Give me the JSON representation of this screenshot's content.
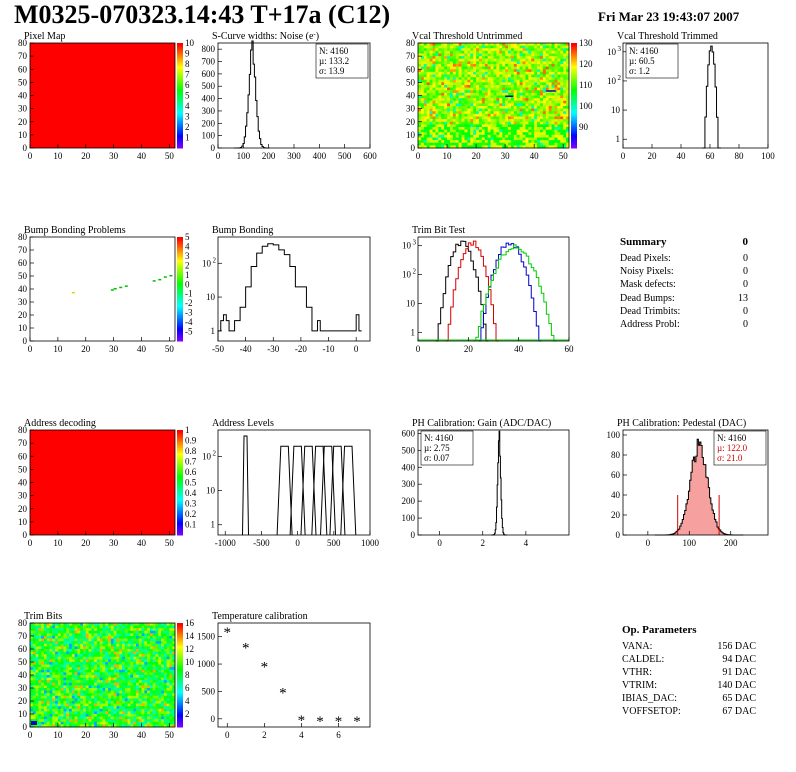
{
  "header": {
    "title": "M0325-070323.14:43 T+17a (C12)",
    "date": "Fri Mar 23 19:43:07 2007"
  },
  "colors": {
    "red_fill": "#ff0000",
    "hist_line": "#000000",
    "trim_red": "#d40000",
    "trim_blue": "#0000cc",
    "trim_green": "#00cc00",
    "gauss_fit": "#d40000",
    "bump_green": "#00cc00"
  },
  "summary": {
    "title": "Summary",
    "total": "0",
    "rows": [
      {
        "label": "Dead Pixels:",
        "value": "0"
      },
      {
        "label": "Noisy Pixels:",
        "value": "0"
      },
      {
        "label": "Mask defects:",
        "value": "0"
      },
      {
        "label": "Dead Bumps:",
        "value": "13"
      },
      {
        "label": "Dead Trimbits:",
        "value": "0"
      },
      {
        "label": "Address Probl:",
        "value": "0"
      }
    ]
  },
  "op_parameters": {
    "title": "Op. Parameters",
    "rows": [
      {
        "label": "VANA:",
        "value": "156 DAC"
      },
      {
        "label": "CALDEL:",
        "value": "94 DAC"
      },
      {
        "label": "VTHR:",
        "value": "91 DAC"
      },
      {
        "label": "VTRIM:",
        "value": "140 DAC"
      },
      {
        "label": "IBIAS_DAC:",
        "value": "65 DAC"
      },
      {
        "label": "VOFFSETOP:",
        "value": "67 DAC"
      }
    ]
  },
  "chart_data": [
    {
      "id": "pixel_map",
      "type": "heatmap",
      "title": "Pixel Map",
      "xlim": [
        0,
        52
      ],
      "ylim": [
        0,
        80
      ],
      "xticks": [
        "0",
        "10",
        "20",
        "30",
        "40",
        "50"
      ],
      "yticks": [
        "0",
        "10",
        "20",
        "30",
        "40",
        "50",
        "60",
        "70",
        "80"
      ],
      "fill": "uniform-red",
      "zscale": [
        0,
        10
      ],
      "zticks": [
        "1",
        "2",
        "3",
        "4",
        "5",
        "6",
        "7",
        "8",
        "9",
        "10"
      ]
    },
    {
      "id": "scurve_noise",
      "type": "bar",
      "title": "S-Curve widths: Noise (e",
      "title_superscript": "-",
      "xlim": [
        0,
        600
      ],
      "ylim": [
        0,
        850
      ],
      "xticks": [
        "0",
        "100",
        "200",
        "300",
        "400",
        "500",
        "600"
      ],
      "yticks": [
        "0",
        "100",
        "200",
        "300",
        "400",
        "500",
        "600",
        "700",
        "800"
      ],
      "stats": [
        {
          "label": "N:",
          "value": "4160"
        },
        {
          "label": "µ:",
          "value": "133.2"
        },
        {
          "label": "σ:",
          "value": "13.9"
        }
      ],
      "gauss": {
        "mean": 133.2,
        "sigma": 13.9,
        "peak": 790,
        "bin": 5
      }
    },
    {
      "id": "vcal_untrimmed",
      "type": "heatmap",
      "title": "Vcal Threshold Untrimmed",
      "xlim": [
        0,
        52
      ],
      "ylim": [
        0,
        80
      ],
      "xticks": [
        "0",
        "10",
        "20",
        "30",
        "40",
        "50"
      ],
      "yticks": [
        "0",
        "10",
        "20",
        "30",
        "40",
        "50",
        "60",
        "70",
        "80"
      ],
      "fill": "noisy-yellow-green",
      "zscale": [
        90,
        140
      ],
      "zticks": [
        "90",
        "100",
        "110",
        "120",
        "130"
      ]
    },
    {
      "id": "vcal_trimmed",
      "type": "bar",
      "title": "Vcal Threshold Trimmed",
      "log": true,
      "xlim": [
        0,
        100
      ],
      "ylim": [
        0.5,
        2000
      ],
      "xticks": [
        "0",
        "20",
        "40",
        "60",
        "80",
        "100"
      ],
      "yticks": [
        "1",
        "10",
        "10",
        "10"
      ],
      "ytick_sup": [
        "",
        "",
        "2",
        "3"
      ],
      "stats": [
        {
          "label": "N:",
          "value": "4160"
        },
        {
          "label": "µ:",
          "value": "60.5"
        },
        {
          "label": "σ:",
          "value": "1.2"
        }
      ],
      "gauss": {
        "mean": 60.5,
        "sigma": 1.2,
        "peak": 1450,
        "bin": 1
      }
    },
    {
      "id": "bump_map",
      "type": "heatmap",
      "title": "Bump Bonding Problems",
      "xlim": [
        0,
        52
      ],
      "ylim": [
        0,
        80
      ],
      "xticks": [
        "0",
        "10",
        "20",
        "30",
        "40",
        "50"
      ],
      "yticks": [
        "0",
        "10",
        "20",
        "30",
        "40",
        "50",
        "60",
        "70",
        "80"
      ],
      "fill": "sparse-points",
      "zscale": [
        -5,
        5
      ],
      "zticks": [
        "-5",
        "-4",
        "-3",
        "-2",
        "-1",
        "0",
        "1",
        "2",
        "3",
        "4",
        "5"
      ],
      "points": [
        {
          "x": 15,
          "y": 37,
          "c": "#e0d000"
        },
        {
          "x": 29,
          "y": 39,
          "c": "#00c000"
        },
        {
          "x": 30,
          "y": 40,
          "c": "#00c000"
        },
        {
          "x": 32,
          "y": 41,
          "c": "#00c000"
        },
        {
          "x": 34,
          "y": 42,
          "c": "#00c000"
        },
        {
          "x": 44,
          "y": 46,
          "c": "#00c000"
        },
        {
          "x": 46,
          "y": 47,
          "c": "#00c000"
        },
        {
          "x": 48,
          "y": 49,
          "c": "#00c000"
        },
        {
          "x": 50,
          "y": 50,
          "c": "#00c000"
        }
      ]
    },
    {
      "id": "bump_bonding",
      "type": "bar",
      "title": "Bump Bonding",
      "log": true,
      "xlim": [
        -50,
        5
      ],
      "ylim": [
        0.5,
        600
      ],
      "xticks": [
        "-50",
        "-40",
        "-30",
        "-20",
        "-10",
        "0"
      ],
      "yticks": [
        "1",
        "10",
        "10"
      ],
      "ytick_sup": [
        "",
        "",
        "2"
      ],
      "profile": [
        {
          "x": -50,
          "y": 1
        },
        {
          "x": -49,
          "y": 2
        },
        {
          "x": -48,
          "y": 3
        },
        {
          "x": -47,
          "y": 2
        },
        {
          "x": -46,
          "y": 1
        },
        {
          "x": -44,
          "y": 2
        },
        {
          "x": -42,
          "y": 5
        },
        {
          "x": -40,
          "y": 20
        },
        {
          "x": -38,
          "y": 80
        },
        {
          "x": -36,
          "y": 200
        },
        {
          "x": -34,
          "y": 320
        },
        {
          "x": -32,
          "y": 380
        },
        {
          "x": -30,
          "y": 350
        },
        {
          "x": -28,
          "y": 250
        },
        {
          "x": -26,
          "y": 180
        },
        {
          "x": -24,
          "y": 80
        },
        {
          "x": -22,
          "y": 20
        },
        {
          "x": -20,
          "y": 20
        },
        {
          "x": -18,
          "y": 5
        },
        {
          "x": -16,
          "y": 1
        },
        {
          "x": -14,
          "y": 2
        },
        {
          "x": -13,
          "y": 1
        },
        {
          "x": -1,
          "y": 1
        },
        {
          "x": 0,
          "y": 3
        },
        {
          "x": 1,
          "y": 1
        }
      ]
    },
    {
      "id": "trim_bit_test",
      "type": "line",
      "title": "Trim Bit Test",
      "log": true,
      "xlim": [
        0,
        60
      ],
      "ylim": [
        0.5,
        2000
      ],
      "xticks": [
        "0",
        "20",
        "40",
        "60"
      ],
      "yticks": [
        "1",
        "10",
        "10",
        "10"
      ],
      "ytick_sup": [
        "",
        "",
        "2",
        "3"
      ],
      "series": [
        {
          "color": "black",
          "mean": 17,
          "sigma": 2.5,
          "peak": 1300
        },
        {
          "color": "red",
          "mean": 21,
          "sigma": 2.5,
          "peak": 1300
        },
        {
          "color": "blue",
          "mean": 36,
          "sigma": 3,
          "peak": 1300
        },
        {
          "color": "green",
          "mean": 38,
          "sigma": 4,
          "peak": 900
        }
      ]
    },
    {
      "id": "address_decoding",
      "type": "heatmap",
      "title": "Address decoding",
      "xlim": [
        0,
        52
      ],
      "ylim": [
        0,
        80
      ],
      "xticks": [
        "0",
        "10",
        "20",
        "30",
        "40",
        "50"
      ],
      "yticks": [
        "0",
        "10",
        "20",
        "30",
        "40",
        "50",
        "60",
        "70",
        "80"
      ],
      "fill": "uniform-red",
      "zscale": [
        0,
        1
      ],
      "zticks": [
        "0.1",
        "0.2",
        "0.3",
        "0.4",
        "0.5",
        "0.6",
        "0.7",
        "0.8",
        "0.9",
        "1"
      ]
    },
    {
      "id": "address_levels",
      "type": "bar",
      "title": "Address Levels",
      "log": true,
      "xlim": [
        -1100,
        1000
      ],
      "ylim": [
        0.5,
        600
      ],
      "xticks": [
        "-1000",
        "-500",
        "0",
        "500",
        "1000"
      ],
      "yticks": [
        "1",
        "10",
        "10"
      ],
      "ytick_sup": [
        "",
        "",
        "2"
      ],
      "peaks": [
        -720,
        -180,
        0,
        150,
        300,
        420,
        550,
        700
      ]
    },
    {
      "id": "ph_gain",
      "type": "bar",
      "title": "PH Calibration: Gain (ADC/DAC)",
      "xlim": [
        -1,
        6
      ],
      "ylim": [
        0,
        620
      ],
      "xticks": [
        "0",
        "2",
        "4"
      ],
      "yticks": [
        "0",
        "100",
        "200",
        "300",
        "400",
        "500",
        "600"
      ],
      "stats": [
        {
          "label": "N:",
          "value": "4160"
        },
        {
          "label": "µ:",
          "value": "2.75"
        },
        {
          "label": "σ:",
          "value": "0.07"
        }
      ],
      "gauss": {
        "mean": 2.75,
        "sigma": 0.07,
        "peak": 580,
        "bin": 0.03
      }
    },
    {
      "id": "ph_pedestal",
      "type": "bar",
      "title": "PH Calibration: Pedestal (DAC)",
      "xlim": [
        -60,
        290
      ],
      "ylim": [
        0,
        105
      ],
      "xticks": [
        "0",
        "100",
        "200"
      ],
      "yticks": [
        "0",
        "20",
        "40",
        "60",
        "80",
        "100"
      ],
      "stats": [
        {
          "label": "N:",
          "value": "4160",
          "red": false
        },
        {
          "label": "µ:",
          "value": "122.0",
          "red": true
        },
        {
          "label": "σ:",
          "value": "21.0",
          "red": true
        }
      ],
      "gauss": {
        "mean": 122,
        "sigma": 21,
        "peak": 88,
        "bin": 3
      },
      "marks": [
        72,
        172
      ]
    },
    {
      "id": "trim_bits",
      "type": "heatmap",
      "title": "Trim Bits",
      "xlim": [
        0,
        52
      ],
      "ylim": [
        0,
        80
      ],
      "xticks": [
        "0",
        "10",
        "20",
        "30",
        "40",
        "50"
      ],
      "yticks": [
        "0",
        "10",
        "20",
        "30",
        "40",
        "50",
        "60",
        "70",
        "80"
      ],
      "fill": "noisy-green",
      "zscale": [
        0,
        16
      ],
      "zticks": [
        "2",
        "4",
        "6",
        "8",
        "10",
        "12",
        "14",
        "16"
      ]
    },
    {
      "id": "temperature",
      "type": "scatter",
      "title": "Temperature calibration",
      "xlim": [
        -0.5,
        7.7
      ],
      "ylim": [
        -150,
        1750
      ],
      "xticks": [
        "0",
        "2",
        "4",
        "6"
      ],
      "yticks": [
        "0",
        "500",
        "1000",
        "1500"
      ],
      "x": [
        0,
        1,
        2,
        3,
        4,
        5,
        6,
        7
      ],
      "y": [
        1600,
        1320,
        970,
        500,
        0,
        -20,
        -20,
        -20
      ]
    }
  ]
}
